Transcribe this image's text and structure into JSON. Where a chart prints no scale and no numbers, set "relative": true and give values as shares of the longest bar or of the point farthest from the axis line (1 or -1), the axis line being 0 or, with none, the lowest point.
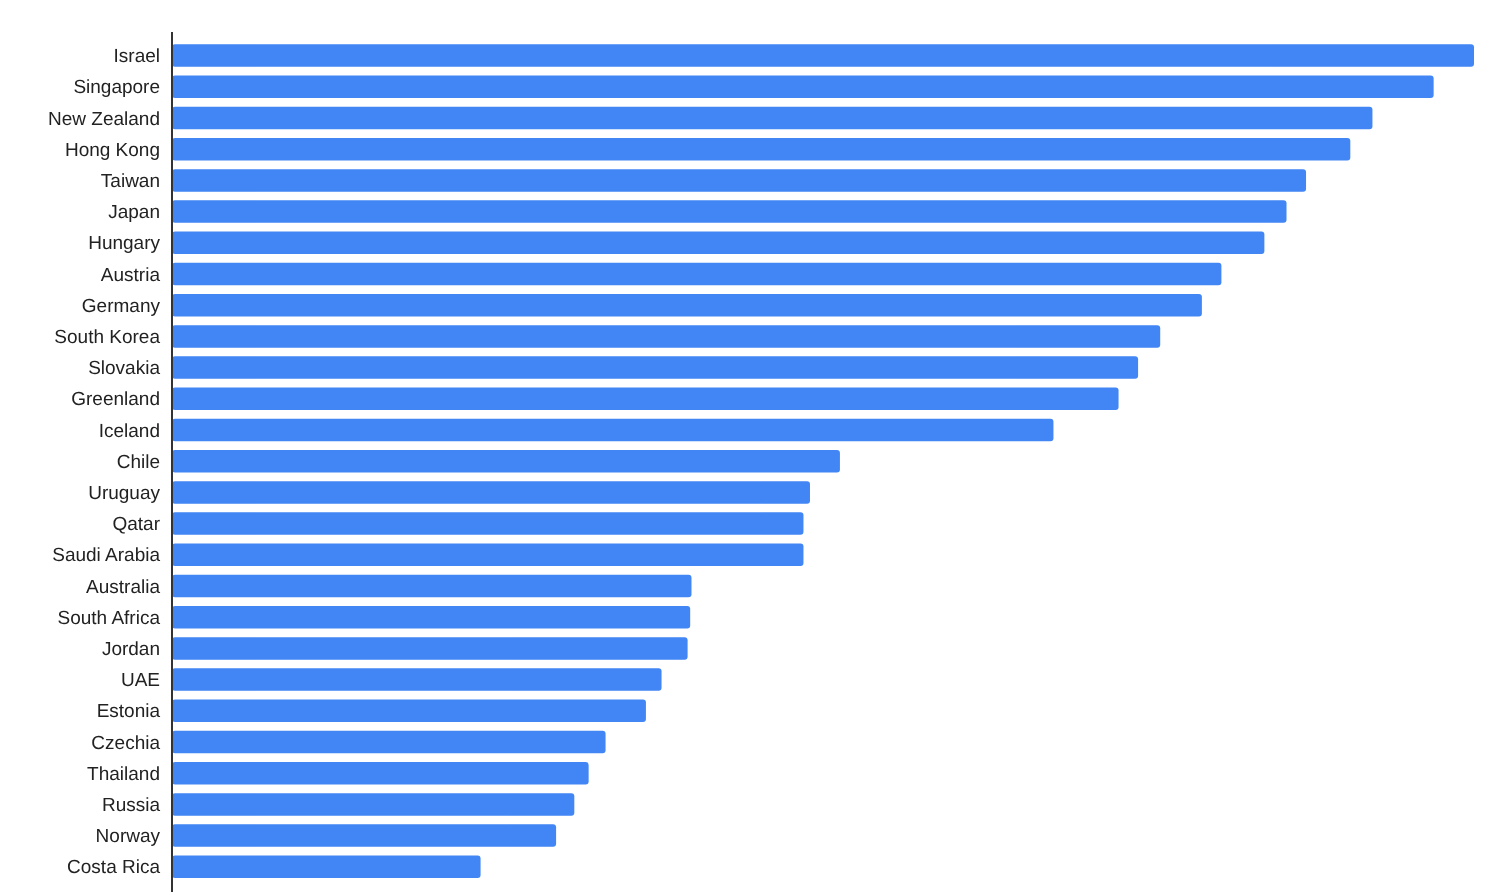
{
  "chart_data": {
    "type": "bar",
    "orientation": "horizontal",
    "relative": true,
    "color": "#4285f4",
    "categories": [
      "Israel",
      "Singapore",
      "New Zealand",
      "Hong Kong",
      "Taiwan",
      "Japan",
      "Hungary",
      "Austria",
      "Germany",
      "South Korea",
      "Slovakia",
      "Greenland",
      "Iceland",
      "Chile",
      "Uruguay",
      "Qatar",
      "Saudi Arabia",
      "Australia",
      "South Africa",
      "Jordan",
      "UAE",
      "Estonia",
      "Czechia",
      "Thailand",
      "Russia",
      "Norway",
      "Costa Rica"
    ],
    "values": [
      1,
      0.969,
      0.922,
      0.905,
      0.871,
      0.856,
      0.839,
      0.806,
      0.791,
      0.759,
      0.742,
      0.727,
      0.677,
      0.513,
      0.49,
      0.485,
      0.485,
      0.399,
      0.398,
      0.396,
      0.376,
      0.364,
      0.333,
      0.32,
      0.309,
      0.295,
      0.237
    ]
  }
}
